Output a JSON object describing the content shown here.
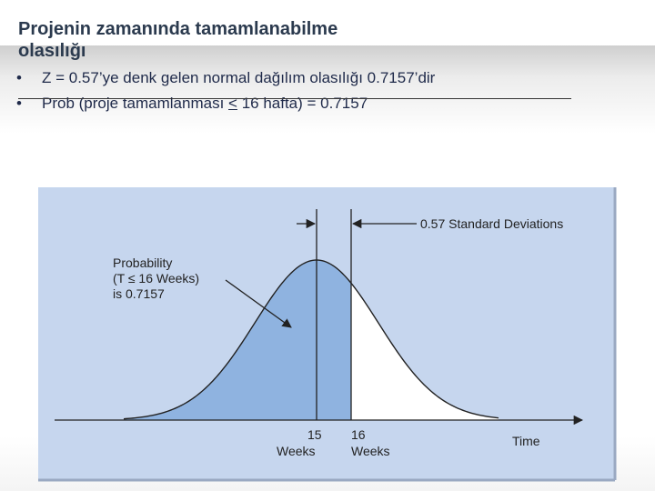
{
  "slide": {
    "title": "Projenin zamanında tamamlanabilme olasılığı",
    "bullets": [
      "Z = 0.57’ye denk gelen normal dağılım olasılığı 0.7157’dir",
      {
        "prefix": "Prob (proje tamamlanması ",
        "symbol": "<",
        "suffix": " 16 hafta) = 0.7157"
      }
    ],
    "bullet_marker": "•"
  },
  "figure": {
    "colors": {
      "panel": "#c6d6ee",
      "shaded": "#8fb3e0",
      "curve": "#222222",
      "white_region": "#ffffff"
    },
    "annotation_sd": "0.57 Standard Deviations",
    "probability_label_lines": [
      "Probability",
      "(T ≤ 16 Weeks)",
      "is 0.7157"
    ],
    "tick1": {
      "value": "15",
      "unit": "Weeks"
    },
    "tick2": {
      "value": "16",
      "unit": "Weeks"
    },
    "axis_label": "Time"
  }
}
